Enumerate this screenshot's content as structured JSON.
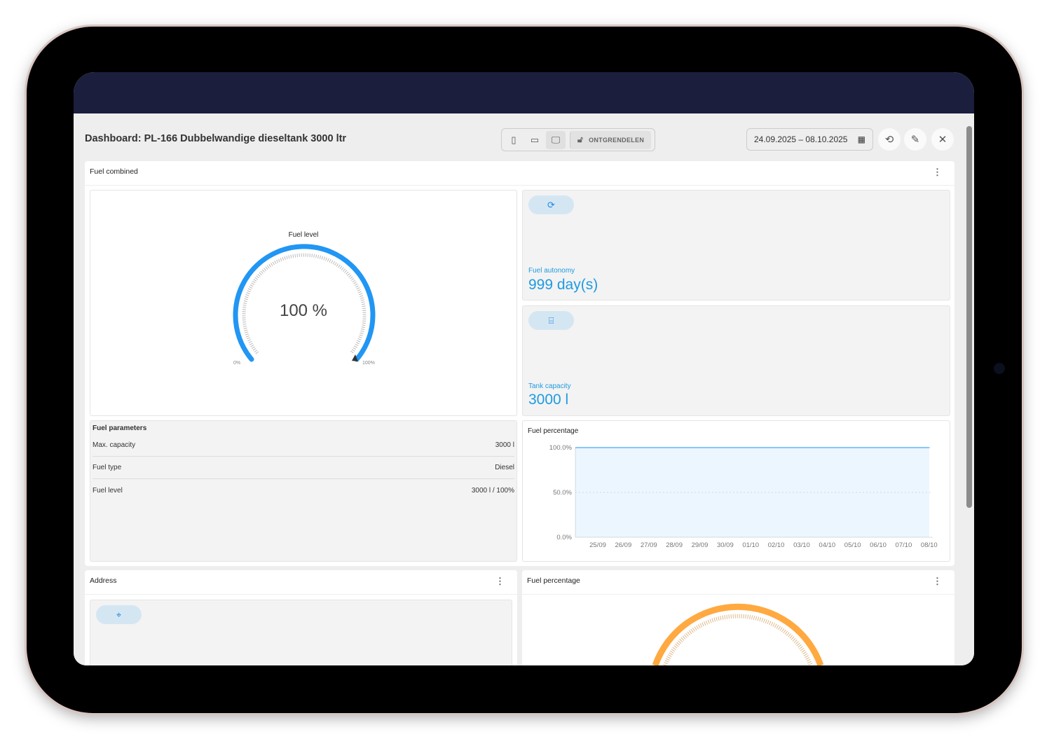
{
  "header": {
    "title": "Dashboard: PL-166 Dubbelwandige dieseltank 3000 ltr",
    "unlock_label": "ONTGRENDELEN",
    "date_range": "24.09.2025 – 08.10.2025"
  },
  "fuel_combined": {
    "title": "Fuel combined",
    "gauge": {
      "title": "Fuel level",
      "value_text": "100 %",
      "value": 100,
      "min_label": "0%",
      "max_label": "100%",
      "color": "#2196f3"
    },
    "autonomy": {
      "label": "Fuel autonomy",
      "value": "999 day(s)"
    },
    "capacity": {
      "label": "Tank capacity",
      "value": "3000 l"
    },
    "parameters": {
      "title": "Fuel parameters",
      "rows": [
        {
          "label": "Max. capacity",
          "value": "3000 l"
        },
        {
          "label": "Fuel type",
          "value": "Diesel"
        },
        {
          "label": "Fuel level",
          "value": "3000 l / 100%"
        }
      ]
    }
  },
  "chart_data": {
    "type": "area",
    "title": "Fuel percentage",
    "y_ticks": [
      "100.0%",
      "50.0%",
      "0.0%"
    ],
    "ylim": [
      0,
      100
    ],
    "categories": [
      "25/09",
      "26/09",
      "27/09",
      "28/09",
      "29/09",
      "30/09",
      "01/10",
      "02/10",
      "03/10",
      "04/10",
      "05/10",
      "06/10",
      "07/10",
      "08/10"
    ],
    "values": [
      100,
      100,
      100,
      100,
      100,
      100,
      100,
      100,
      100,
      100,
      100,
      100,
      100,
      100
    ],
    "color": "#64b5f6",
    "grid": true
  },
  "address": {
    "title": "Address"
  },
  "fuel_percentage_gauge": {
    "title": "Fuel percentage",
    "color": "#ffa940"
  }
}
